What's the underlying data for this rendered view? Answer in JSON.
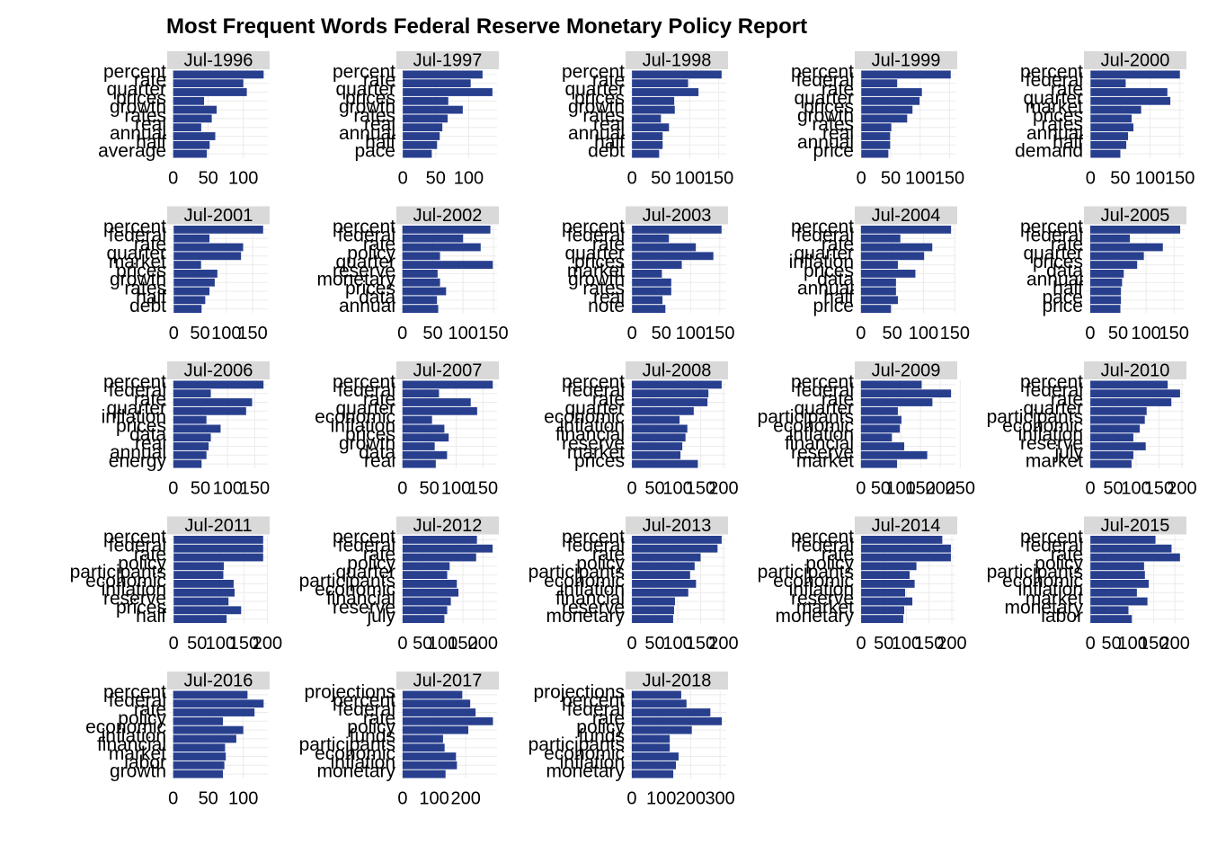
{
  "title": "Most Frequent Words Federal Reserve Monetary Policy Report",
  "chart_data": [
    {
      "type": "bar",
      "title": "Jul-1996",
      "categories": [
        "percent",
        "rate",
        "quarter",
        "prices",
        "growth",
        "rates",
        "real",
        "annual",
        "half",
        "average"
      ],
      "values": [
        129,
        100,
        105,
        44,
        62,
        55,
        40,
        60,
        52,
        48
      ],
      "color": "#283f8e",
      "xlim": [
        -6,
        135
      ],
      "xticks": [
        0,
        50,
        100
      ],
      "grid": true
    },
    {
      "type": "bar",
      "title": "Jul-1997",
      "categories": [
        "percent",
        "rate",
        "quarter",
        "prices",
        "growth",
        "rates",
        "real",
        "annual",
        "half",
        "pace"
      ],
      "values": [
        121,
        103,
        136,
        69,
        91,
        68,
        60,
        56,
        52,
        44
      ],
      "color": "#283f8e",
      "xlim": [
        -7,
        143
      ],
      "xticks": [
        0,
        50,
        100
      ],
      "grid": true
    },
    {
      "type": "bar",
      "title": "Jul-1998",
      "categories": [
        "percent",
        "rate",
        "quarter",
        "prices",
        "growth",
        "rates",
        "real",
        "annual",
        "half",
        "debt"
      ],
      "values": [
        155,
        97,
        115,
        73,
        74,
        50,
        64,
        53,
        53,
        47
      ],
      "color": "#283f8e",
      "xlim": [
        -8,
        163
      ],
      "xticks": [
        0,
        50,
        100,
        150
      ],
      "grid": true
    },
    {
      "type": "bar",
      "title": "Jul-1999",
      "categories": [
        "percent",
        "federal",
        "rate",
        "quarter",
        "prices",
        "growth",
        "rates",
        "real",
        "annual",
        "price"
      ],
      "values": [
        152,
        61,
        103,
        99,
        87,
        78,
        51,
        49,
        49,
        46
      ],
      "color": "#283f8e",
      "xlim": [
        -8,
        160
      ],
      "xticks": [
        0,
        50,
        100,
        150
      ],
      "grid": true
    },
    {
      "type": "bar",
      "title": "Jul-2000",
      "categories": [
        "percent",
        "federal",
        "rate",
        "quarter",
        "market",
        "prices",
        "rates",
        "annual",
        "half",
        "demand"
      ],
      "values": [
        150,
        59,
        129,
        134,
        85,
        69,
        72,
        63,
        60,
        50
      ],
      "color": "#283f8e",
      "xlim": [
        -8,
        158
      ],
      "xticks": [
        0,
        50,
        100,
        150
      ],
      "grid": true
    },
    {
      "type": "bar",
      "title": "Jul-2001",
      "categories": [
        "percent",
        "federal",
        "rate",
        "quarter",
        "market",
        "prices",
        "growth",
        "rates",
        "half",
        "debt"
      ],
      "values": [
        170,
        68,
        132,
        128,
        52,
        83,
        78,
        68,
        60,
        53
      ],
      "color": "#283f8e",
      "xlim": [
        -9,
        179
      ],
      "xticks": [
        0,
        50,
        100,
        150
      ],
      "grid": true
    },
    {
      "type": "bar",
      "title": "Jul-2002",
      "categories": [
        "percent",
        "federal",
        "rate",
        "policy",
        "quarter",
        "reserve",
        "monetary",
        "prices",
        "data",
        "annual"
      ],
      "values": [
        145,
        100,
        129,
        62,
        149,
        58,
        62,
        72,
        57,
        59
      ],
      "color": "#283f8e",
      "xlim": [
        -7,
        156
      ],
      "xticks": [
        0,
        50,
        100,
        150
      ],
      "grid": true
    },
    {
      "type": "bar",
      "title": "Jul-2003",
      "categories": [
        "percent",
        "federal",
        "rate",
        "quarter",
        "prices",
        "market",
        "growth",
        "rates",
        "real",
        "note"
      ],
      "values": [
        153,
        63,
        109,
        139,
        85,
        51,
        67,
        67,
        52,
        57
      ],
      "color": "#283f8e",
      "xlim": [
        -8,
        161
      ],
      "xticks": [
        0,
        50,
        100,
        150
      ],
      "grid": true
    },
    {
      "type": "bar",
      "title": "Jul-2004",
      "categories": [
        "percent",
        "federal",
        "rate",
        "quarter",
        "inflation",
        "prices",
        "data",
        "annual",
        "half",
        "price"
      ],
      "values": [
        144,
        63,
        114,
        101,
        59,
        87,
        56,
        56,
        59,
        48
      ],
      "color": "#283f8e",
      "xlim": [
        -7,
        151
      ],
      "xticks": [
        0,
        50,
        100,
        150
      ],
      "grid": true
    },
    {
      "type": "bar",
      "title": "Jul-2005",
      "categories": [
        "percent",
        "federal",
        "rate",
        "quarter",
        "prices",
        "data",
        "annual",
        "half",
        "pace",
        "price"
      ],
      "values": [
        161,
        71,
        130,
        96,
        84,
        60,
        57,
        55,
        55,
        54
      ],
      "color": "#283f8e",
      "xlim": [
        -8,
        169
      ],
      "xticks": [
        0,
        50,
        100,
        150
      ],
      "grid": true
    },
    {
      "type": "bar",
      "title": "Jul-2006",
      "categories": [
        "percent",
        "federal",
        "rate",
        "quarter",
        "inflation",
        "prices",
        "data",
        "real",
        "annual",
        "energy"
      ],
      "values": [
        166,
        69,
        145,
        134,
        61,
        87,
        69,
        65,
        61,
        52
      ],
      "color": "#283f8e",
      "xlim": [
        -8,
        174
      ],
      "xticks": [
        0,
        50,
        100,
        150
      ],
      "grid": true
    },
    {
      "type": "bar",
      "title": "Jul-2007",
      "categories": [
        "percent",
        "federal",
        "rate",
        "quarter",
        "economic",
        "inflation",
        "prices",
        "growth",
        "data",
        "real"
      ],
      "values": [
        168,
        68,
        127,
        139,
        55,
        78,
        86,
        60,
        83,
        62
      ],
      "color": "#283f8e",
      "xlim": [
        -8,
        176
      ],
      "xticks": [
        0,
        50,
        100,
        150
      ],
      "grid": true
    },
    {
      "type": "bar",
      "title": "Jul-2008",
      "categories": [
        "percent",
        "federal",
        "rate",
        "quarter",
        "economic",
        "inflation",
        "financial",
        "reserve",
        "market",
        "prices"
      ],
      "values": [
        196,
        167,
        165,
        135,
        104,
        121,
        117,
        110,
        106,
        144
      ],
      "color": "#283f8e",
      "xlim": [
        -10,
        206
      ],
      "xticks": [
        0,
        50,
        100,
        150,
        200
      ],
      "grid": true
    },
    {
      "type": "bar",
      "title": "Jul-2009",
      "categories": [
        "percent",
        "federal",
        "rate",
        "quarter",
        "participants",
        "economic",
        "inflation",
        "financial",
        "reserve",
        "market"
      ],
      "values": [
        153,
        227,
        180,
        93,
        102,
        98,
        78,
        109,
        167,
        91
      ],
      "color": "#283f8e",
      "xlim": [
        -11,
        238
      ],
      "xticks": [
        0,
        50,
        100,
        150,
        200,
        250
      ],
      "grid": true
    },
    {
      "type": "bar",
      "title": "Jul-2010",
      "categories": [
        "percent",
        "federal",
        "rate",
        "quarter",
        "participants",
        "economic",
        "inflation",
        "reserve",
        "july",
        "market"
      ],
      "values": [
        169,
        196,
        177,
        123,
        119,
        108,
        94,
        121,
        94,
        90
      ],
      "color": "#283f8e",
      "xlim": [
        -10,
        206
      ],
      "xticks": [
        0,
        50,
        100,
        150,
        200
      ],
      "grid": true
    },
    {
      "type": "bar",
      "title": "Jul-2011",
      "categories": [
        "percent",
        "federal",
        "rate",
        "policy",
        "participants",
        "economic",
        "inflation",
        "reserve",
        "prices",
        "half"
      ],
      "values": [
        191,
        191,
        191,
        107,
        106,
        128,
        130,
        117,
        144,
        113
      ],
      "color": "#283f8e",
      "xlim": [
        -10,
        201
      ],
      "xticks": [
        0,
        50,
        100,
        150,
        200
      ],
      "grid": true
    },
    {
      "type": "bar",
      "title": "Jul-2012",
      "categories": [
        "percent",
        "federal",
        "rate",
        "policy",
        "quarter",
        "participants",
        "economic",
        "financial",
        "reserve",
        "july"
      ],
      "values": [
        185,
        224,
        183,
        117,
        111,
        135,
        139,
        120,
        111,
        104
      ],
      "color": "#283f8e",
      "xlim": [
        -11,
        235
      ],
      "xticks": [
        0,
        50,
        100,
        150,
        200
      ],
      "grid": true
    },
    {
      "type": "bar",
      "title": "Jul-2013",
      "categories": [
        "percent",
        "federal",
        "rate",
        "policy",
        "participants",
        "economic",
        "inflation",
        "financial",
        "reserve",
        "monetary"
      ],
      "values": [
        196,
        187,
        150,
        137,
        127,
        140,
        123,
        94,
        92,
        90
      ],
      "color": "#283f8e",
      "xlim": [
        -10,
        206
      ],
      "xticks": [
        0,
        50,
        100,
        150,
        200
      ],
      "grid": true
    },
    {
      "type": "bar",
      "title": "Jul-2014",
      "categories": [
        "percent",
        "federal",
        "rate",
        "policy",
        "participants",
        "economic",
        "inflation",
        "reserve",
        "market",
        "monetary"
      ],
      "values": [
        179,
        198,
        198,
        122,
        107,
        118,
        97,
        113,
        95,
        93
      ],
      "color": "#283f8e",
      "xlim": [
        -10,
        208
      ],
      "xticks": [
        0,
        50,
        100,
        150,
        200
      ],
      "grid": true
    },
    {
      "type": "bar",
      "title": "Jul-2015",
      "categories": [
        "percent",
        "federal",
        "rate",
        "policy",
        "participants",
        "economic",
        "inflation",
        "market",
        "monetary",
        "labor"
      ],
      "values": [
        154,
        192,
        212,
        127,
        129,
        138,
        110,
        135,
        90,
        98
      ],
      "color": "#283f8e",
      "xlim": [
        -11,
        223
      ],
      "xticks": [
        0,
        50,
        100,
        150,
        200
      ],
      "grid": true
    },
    {
      "type": "bar",
      "title": "Jul-2016",
      "categories": [
        "percent",
        "federal",
        "rate",
        "policy",
        "economic",
        "inflation",
        "financial",
        "market",
        "labor",
        "growth"
      ],
      "values": [
        106,
        129,
        116,
        71,
        100,
        90,
        74,
        75,
        73,
        71
      ],
      "color": "#283f8e",
      "xlim": [
        -6,
        135
      ],
      "xticks": [
        0,
        50,
        100
      ],
      "grid": true
    },
    {
      "type": "bar",
      "title": "Jul-2017",
      "categories": [
        "projections",
        "percent",
        "federal",
        "rate",
        "policy",
        "funds",
        "participants",
        "economic",
        "inflation",
        "monetary"
      ],
      "values": [
        189,
        214,
        231,
        286,
        208,
        128,
        133,
        169,
        172,
        136
      ],
      "color": "#283f8e",
      "xlim": [
        -14,
        299
      ],
      "xticks": [
        0,
        100,
        200
      ],
      "grid": true
    },
    {
      "type": "bar",
      "title": "Jul-2018",
      "categories": [
        "projections",
        "percent",
        "federal",
        "rate",
        "policy",
        "funds",
        "participants",
        "economic",
        "inflation",
        "monetary"
      ],
      "values": [
        168,
        186,
        267,
        306,
        204,
        129,
        129,
        159,
        150,
        141
      ],
      "color": "#283f8e",
      "xlim": [
        -15,
        321
      ],
      "xticks": [
        0,
        100,
        200,
        300
      ],
      "grid": true
    }
  ]
}
